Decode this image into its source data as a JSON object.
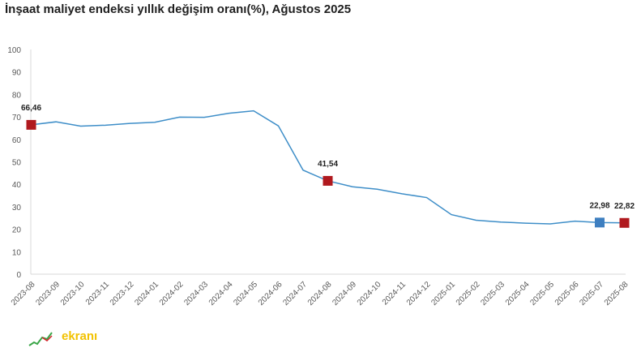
{
  "chart_data": {
    "type": "line",
    "title": "İnşaat maliyet endeksi yıllık değişim oranı(%), Ağustos 2025",
    "xlabel": "",
    "ylabel": "",
    "ylim": [
      0,
      100
    ],
    "yticks": [
      0,
      10,
      20,
      30,
      40,
      50,
      60,
      70,
      80,
      90,
      100
    ],
    "grid": false,
    "categories": [
      "2023-08",
      "2023-09",
      "2023-10",
      "2023-11",
      "2023-12",
      "2024-01",
      "2024-02",
      "2024-03",
      "2024-04",
      "2024-05",
      "2024-06",
      "2024-07",
      "2024-08",
      "2024-09",
      "2024-10",
      "2024-11",
      "2024-12",
      "2025-01",
      "2025-02",
      "2025-03",
      "2025-04",
      "2025-05",
      "2025-06",
      "2025-07",
      "2025-08"
    ],
    "series": [
      {
        "color": "#3e8ec8",
        "values": [
          66.46,
          67.8,
          65.9,
          66.3,
          67.1,
          67.6,
          69.9,
          69.8,
          71.6,
          72.7,
          66.0,
          46.3,
          41.54,
          38.9,
          37.8,
          35.8,
          34.1,
          26.5,
          24.0,
          23.2,
          22.7,
          22.4,
          23.6,
          22.98,
          22.82
        ]
      }
    ],
    "markers": [
      {
        "index": 0,
        "label": "66,46",
        "color": "#b0191e"
      },
      {
        "index": 12,
        "label": "41,54",
        "color": "#b0191e"
      },
      {
        "index": 23,
        "label": "22,98",
        "color": "#3e7fc0"
      },
      {
        "index": 24,
        "label": "22,82",
        "color": "#b0191e"
      }
    ]
  },
  "watermark": {
    "text": "ekranı"
  }
}
